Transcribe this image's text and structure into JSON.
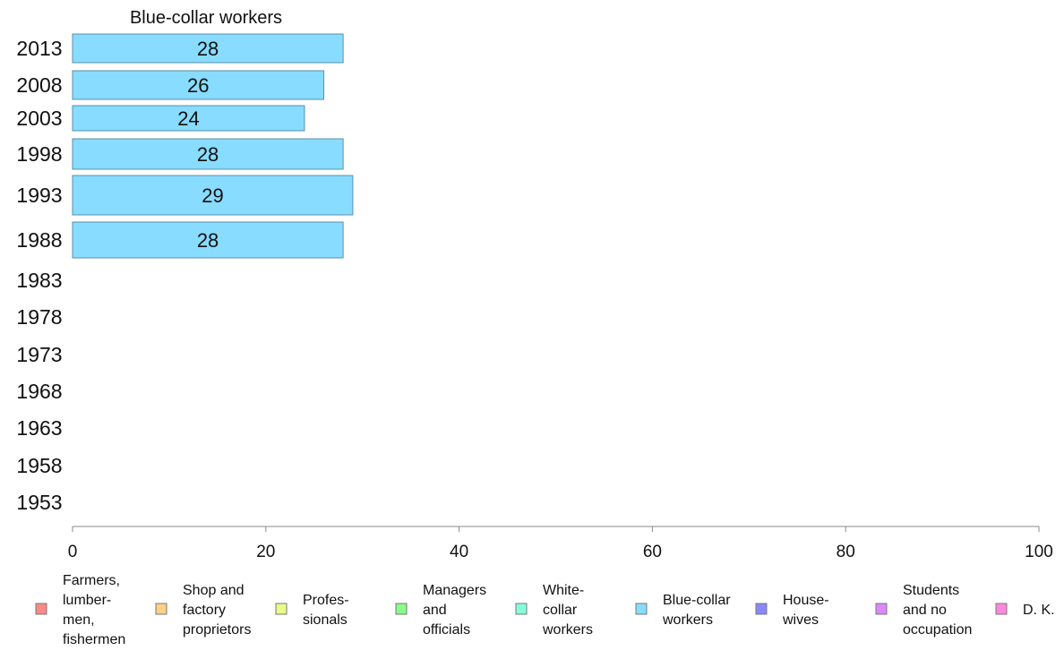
{
  "chart_data": {
    "type": "bar",
    "orientation": "horizontal",
    "title": "Blue-collar workers",
    "xlim": [
      0,
      100
    ],
    "xticks": [
      0,
      20,
      40,
      60,
      80,
      100
    ],
    "grid": false,
    "legend_position": "bottom",
    "categories": [
      "2013",
      "2008",
      "2003",
      "1998",
      "1993",
      "1988",
      "1983",
      "1978",
      "1973",
      "1968",
      "1963",
      "1958",
      "1953"
    ],
    "series": [
      {
        "name": "Blue-collar workers",
        "color": "#88dcff",
        "values": [
          28,
          26,
          24,
          28,
          29,
          28,
          null,
          null,
          null,
          null,
          null,
          null,
          null
        ],
        "labels": [
          "28",
          "26",
          "24",
          "28",
          "29",
          "28",
          "",
          "",
          "",
          "",
          "",
          "",
          ""
        ]
      }
    ],
    "legend": [
      {
        "lines": [
          "Farmers,",
          "lumber-",
          "men,",
          "fishermen"
        ],
        "color": "#ff8888"
      },
      {
        "lines": [
          "Shop and",
          "factory",
          "proprietors"
        ],
        "color": "#ffd088"
      },
      {
        "lines": [
          "Profes-",
          "sionals"
        ],
        "color": "#e8ff88"
      },
      {
        "lines": [
          "Managers",
          "and",
          "officials"
        ],
        "color": "#88ff88"
      },
      {
        "lines": [
          "White-",
          "collar",
          "workers"
        ],
        "color": "#88ffdc"
      },
      {
        "lines": [
          "Blue-collar",
          "workers"
        ],
        "color": "#88dcff"
      },
      {
        "lines": [
          "House-",
          "wives"
        ],
        "color": "#8888ff"
      },
      {
        "lines": [
          "Students",
          "and no",
          "occupation"
        ],
        "color": "#dc88ff"
      },
      {
        "lines": [
          "D. K."
        ],
        "color": "#ff88dc"
      }
    ]
  }
}
